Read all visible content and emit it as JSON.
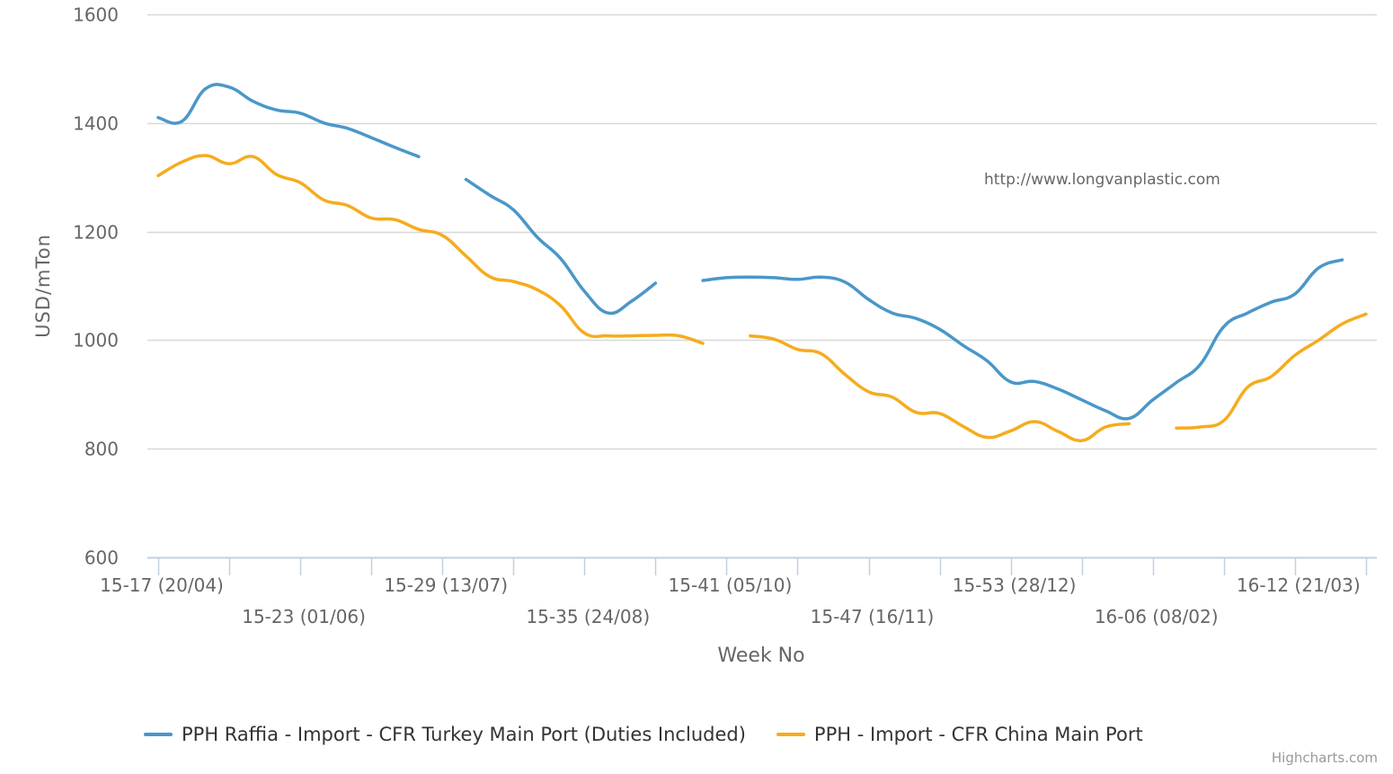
{
  "chart_data": {
    "type": "line",
    "watermark": "http://www.longvanplastic.com",
    "credits": "Highcharts.com",
    "xlabel": "Week No",
    "ylabel": "USD/mTon",
    "ylim": [
      600,
      1600
    ],
    "y_ticks": [
      600,
      800,
      1000,
      1200,
      1400,
      1600
    ],
    "x_range": [
      0,
      51
    ],
    "x_ticks": [
      {
        "x": 0,
        "label": "15-17 (20/04)"
      },
      {
        "x": 6,
        "label": "15-23 (01/06)"
      },
      {
        "x": 12,
        "label": "15-29 (13/07)"
      },
      {
        "x": 18,
        "label": "15-35 (24/08)"
      },
      {
        "x": 24,
        "label": "15-41 (05/10)"
      },
      {
        "x": 30,
        "label": "15-47 (16/11)"
      },
      {
        "x": 36,
        "label": "15-53 (28/12)"
      },
      {
        "x": 42,
        "label": "16-06 (08/02)"
      },
      {
        "x": 48,
        "label": "16-12 (21/03)"
      }
    ],
    "x_gridlines": [
      0,
      3,
      6,
      9,
      12,
      15,
      18,
      21,
      24,
      27,
      30,
      33,
      36,
      39,
      42,
      45,
      48,
      51
    ],
    "grid": "horizontal",
    "legend_position": "bottom",
    "series": [
      {
        "name": "PPH Raffia - Import - CFR Turkey Main Port (Duties Included)",
        "color": "#4a97c9",
        "points": [
          [
            0,
            1410
          ],
          [
            1,
            1403
          ],
          [
            2,
            1463
          ],
          [
            3,
            1466
          ],
          [
            4,
            1440
          ],
          [
            5,
            1424
          ],
          [
            6,
            1418
          ],
          [
            7,
            1400
          ],
          [
            8,
            1390
          ],
          [
            9,
            1373
          ],
          [
            10,
            1355
          ],
          [
            11,
            1338
          ],
          [
            12,
            null
          ],
          [
            13,
            1296
          ],
          [
            14,
            1267
          ],
          [
            15,
            1240
          ],
          [
            16,
            1190
          ],
          [
            17,
            1150
          ],
          [
            18,
            1090
          ],
          [
            19,
            1050
          ],
          [
            20,
            1072
          ],
          [
            21,
            1105
          ],
          [
            22,
            null
          ],
          [
            23,
            1110
          ],
          [
            24,
            1115
          ],
          [
            25,
            1116
          ],
          [
            26,
            1115
          ],
          [
            27,
            1112
          ],
          [
            28,
            1116
          ],
          [
            29,
            1107
          ],
          [
            30,
            1075
          ],
          [
            31,
            1050
          ],
          [
            32,
            1040
          ],
          [
            33,
            1020
          ],
          [
            34,
            990
          ],
          [
            35,
            962
          ],
          [
            36,
            923
          ],
          [
            37,
            924
          ],
          [
            38,
            910
          ],
          [
            39,
            890
          ],
          [
            40,
            870
          ],
          [
            41,
            856
          ],
          [
            42,
            890
          ],
          [
            43,
            922
          ],
          [
            44,
            955
          ],
          [
            45,
            1025
          ],
          [
            46,
            1050
          ],
          [
            47,
            1070
          ],
          [
            48,
            1085
          ],
          [
            49,
            1133
          ],
          [
            50,
            1148
          ]
        ]
      },
      {
        "name": "PPH - Import - CFR China Main Port",
        "color": "#f5ac1d",
        "points": [
          [
            0,
            1303
          ],
          [
            1,
            1328
          ],
          [
            2,
            1340
          ],
          [
            3,
            1325
          ],
          [
            4,
            1338
          ],
          [
            5,
            1305
          ],
          [
            6,
            1290
          ],
          [
            7,
            1258
          ],
          [
            8,
            1248
          ],
          [
            9,
            1225
          ],
          [
            10,
            1222
          ],
          [
            11,
            1204
          ],
          [
            12,
            1193
          ],
          [
            13,
            1155
          ],
          [
            14,
            1117
          ],
          [
            15,
            1108
          ],
          [
            16,
            1093
          ],
          [
            17,
            1063
          ],
          [
            18,
            1013
          ],
          [
            19,
            1008
          ],
          [
            20,
            1008
          ],
          [
            21,
            1009
          ],
          [
            22,
            1008
          ],
          [
            23,
            994
          ],
          [
            24,
            null
          ],
          [
            25,
            1008
          ],
          [
            26,
            1002
          ],
          [
            27,
            983
          ],
          [
            28,
            975
          ],
          [
            29,
            937
          ],
          [
            30,
            905
          ],
          [
            31,
            895
          ],
          [
            32,
            867
          ],
          [
            33,
            865
          ],
          [
            34,
            841
          ],
          [
            35,
            821
          ],
          [
            36,
            833
          ],
          [
            37,
            850
          ],
          [
            38,
            832
          ],
          [
            39,
            815
          ],
          [
            40,
            840
          ],
          [
            41,
            846
          ],
          [
            42,
            null
          ],
          [
            43,
            838
          ],
          [
            44,
            840
          ],
          [
            45,
            852
          ],
          [
            46,
            913
          ],
          [
            47,
            933
          ],
          [
            48,
            972
          ],
          [
            49,
            1000
          ],
          [
            50,
            1030
          ],
          [
            51,
            1048
          ]
        ]
      }
    ]
  }
}
